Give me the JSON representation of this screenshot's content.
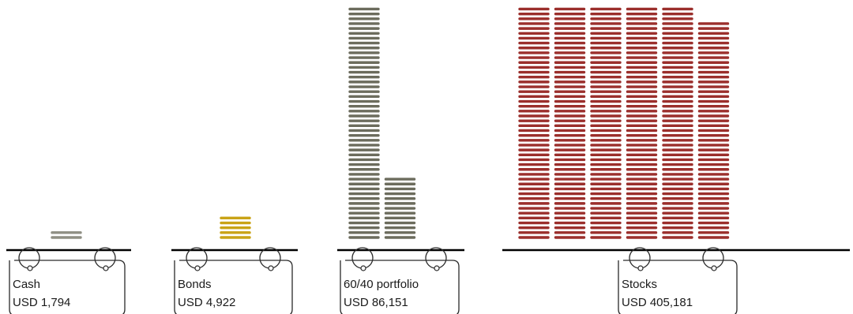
{
  "chart_data": {
    "type": "bar",
    "unit_note": "",
    "categories": [
      "Cash",
      "Bonds",
      "60/40 portfolio",
      "Stocks"
    ],
    "labels": [
      "USD 1,794",
      "USD 4,922",
      "USD 86,151",
      "USD 405,181"
    ],
    "values": [
      1794,
      4922,
      86151,
      405181
    ],
    "stack_counts": [
      2,
      5,
      61,
      285
    ],
    "colors": [
      "#8f8f84",
      "#c9a316",
      "#6c6c5d",
      "#9b2f2c"
    ],
    "line_color": "#000000",
    "tag_stroke": "#2a2a2a"
  }
}
